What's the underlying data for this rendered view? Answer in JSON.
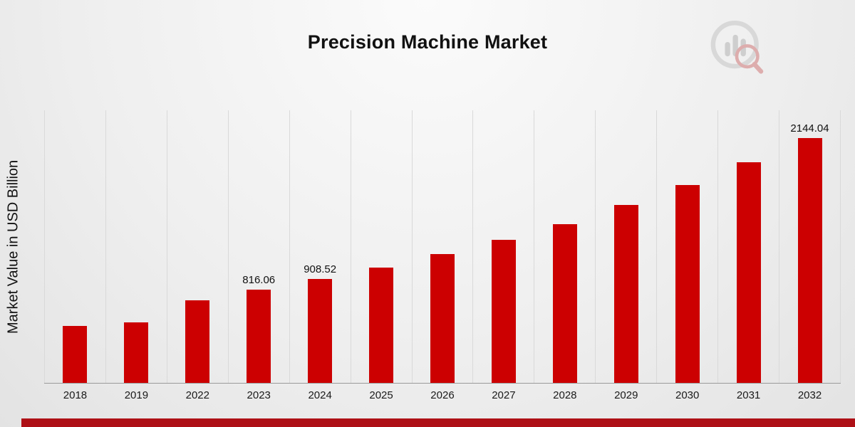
{
  "title": "Precision Machine Market",
  "ylabel": "Market Value in USD Billion",
  "colors": {
    "bar": "#cc0001",
    "footer_stripe": "#ae1016",
    "gridline": "#d9d9d9"
  },
  "logo": {
    "name": "brand-chart-magnifier-logo"
  },
  "chart_data": {
    "type": "bar",
    "title": "Precision Machine Market",
    "xlabel": "",
    "ylabel": "Market Value in USD Billion",
    "categories": [
      "2018",
      "2019",
      "2022",
      "2023",
      "2024",
      "2025",
      "2026",
      "2027",
      "2028",
      "2029",
      "2030",
      "2031",
      "2032"
    ],
    "values": [
      498,
      530,
      723,
      816.06,
      908.52,
      1010,
      1128,
      1253,
      1390,
      1558,
      1732,
      1932,
      2144.04
    ],
    "data_labels": {
      "2023": "816.06",
      "2024": "908.52",
      "2032": "2144.04"
    },
    "ylim": [
      0,
      2390
    ],
    "grid": "vertical",
    "legend": "none",
    "bar_color": "#cc0001"
  }
}
